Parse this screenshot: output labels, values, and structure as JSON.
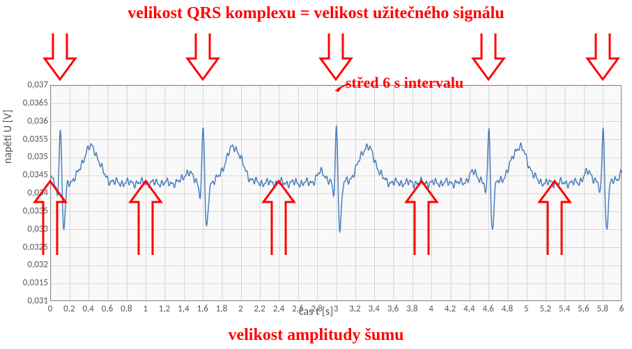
{
  "title_top": "velikost QRS komplexu = velikost užitečného signálu",
  "title_bottom": "velikost amplitudy šumu",
  "center_label": "střed 6 s intervalu",
  "y_axis_label": "napětí U [V]",
  "x_axis_label": "čas t [s]",
  "chart": {
    "type": "line",
    "xlim": [
      0,
      6
    ],
    "ylim": [
      0.031,
      0.037
    ],
    "yticks": [
      0.031,
      0.0315,
      0.032,
      0.0325,
      0.033,
      0.0335,
      0.034,
      0.0345,
      0.035,
      0.0355,
      0.036,
      0.0365,
      0.037
    ],
    "xticks": [
      0,
      0.2,
      0.4,
      0.6,
      0.8,
      1,
      1.2,
      1.4,
      1.6,
      1.8,
      2,
      2.2,
      2.4,
      2.6,
      2.8,
      3,
      3.2,
      3.4,
      3.6,
      3.8,
      4,
      4.2,
      4.4,
      4.6,
      4.8,
      5,
      5.2,
      5.4,
      5.6,
      5.8,
      6
    ],
    "xtick_step": 0.2,
    "ytick_step": 0.0005,
    "signal_color": "#4a7ebb",
    "signal_width": 1.5,
    "grid_major_color": "#c0c0c0",
    "grid_minor_color": "#e8e8e8",
    "background_color": "#ffffff",
    "plot_border_color": "#888888",
    "label_fontsize": 16,
    "tick_fontsize": 13,
    "title_fontsize": 24,
    "title_color": "#ff0000",
    "arrow_color": "#ff0000",
    "arrow_stroke_width": 3,
    "center_arrow_color": "#ff0000",
    "ecg_peaks_x": [
      0.1,
      1.6,
      3.0,
      4.6,
      5.8
    ],
    "ecg_baseline": 0.0343,
    "qrs_peak_value": 0.036,
    "qrs_trough_value": 0.033,
    "t_wave_peak_value": 0.0353,
    "p_wave_peak_value": 0.0346,
    "noise_amplitude": 0.00015,
    "down_arrows_x": [
      0.1,
      1.6,
      3.0,
      4.6,
      5.8
    ],
    "up_arrows_x": [
      0.0,
      1.0,
      2.4,
      3.9,
      5.3
    ],
    "center_marker_x": 3.0
  }
}
